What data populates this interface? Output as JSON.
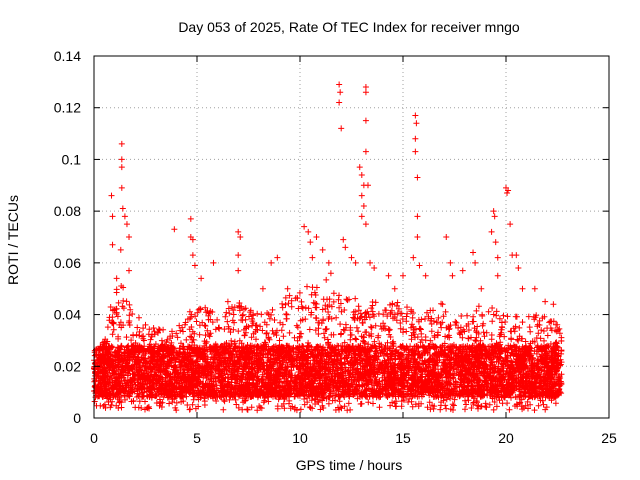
{
  "chart_data": {
    "type": "scatter",
    "title": "Day 053 of 2025, Rate Of TEC Index for receiver mngo",
    "xlabel": "GPS time / hours",
    "ylabel": "ROTI / TECUs",
    "xlim": [
      0,
      25
    ],
    "ylim": [
      0,
      0.14
    ],
    "x_ticks": [
      0,
      5,
      10,
      15,
      20,
      25
    ],
    "x_tick_labels": [
      "0",
      "5",
      "10",
      "15",
      "20",
      "25"
    ],
    "y_ticks": [
      0,
      0.02,
      0.04,
      0.06,
      0.08,
      0.1,
      0.12,
      0.14
    ],
    "y_tick_labels": [
      "0",
      "0.02",
      "0.04",
      "0.06",
      "0.08",
      "0.1",
      "0.12",
      "0.14"
    ],
    "grid": true,
    "marker": "+",
    "series_color": "#ff0000",
    "data_x_range": [
      0,
      22.7
    ],
    "baseline_band": [
      0.008,
      0.028
    ],
    "envelope": [
      {
        "x": 0.0,
        "y": 0.025
      },
      {
        "x": 0.5,
        "y": 0.03
      },
      {
        "x": 0.8,
        "y": 0.045
      },
      {
        "x": 1.2,
        "y": 0.055
      },
      {
        "x": 1.5,
        "y": 0.05
      },
      {
        "x": 2.0,
        "y": 0.04
      },
      {
        "x": 3.0,
        "y": 0.035
      },
      {
        "x": 4.0,
        "y": 0.035
      },
      {
        "x": 5.0,
        "y": 0.045
      },
      {
        "x": 6.0,
        "y": 0.04
      },
      {
        "x": 7.0,
        "y": 0.045
      },
      {
        "x": 8.0,
        "y": 0.04
      },
      {
        "x": 9.0,
        "y": 0.045
      },
      {
        "x": 10.0,
        "y": 0.05
      },
      {
        "x": 11.0,
        "y": 0.055
      },
      {
        "x": 12.0,
        "y": 0.05
      },
      {
        "x": 13.0,
        "y": 0.045
      },
      {
        "x": 14.0,
        "y": 0.045
      },
      {
        "x": 15.0,
        "y": 0.045
      },
      {
        "x": 16.0,
        "y": 0.04
      },
      {
        "x": 17.0,
        "y": 0.045
      },
      {
        "x": 18.0,
        "y": 0.04
      },
      {
        "x": 19.0,
        "y": 0.045
      },
      {
        "x": 20.0,
        "y": 0.04
      },
      {
        "x": 21.0,
        "y": 0.04
      },
      {
        "x": 22.0,
        "y": 0.04
      },
      {
        "x": 22.7,
        "y": 0.035
      }
    ],
    "notable_points": [
      {
        "x": 0.85,
        "y": 0.086
      },
      {
        "x": 0.9,
        "y": 0.078
      },
      {
        "x": 0.9,
        "y": 0.067
      },
      {
        "x": 1.35,
        "y": 0.106
      },
      {
        "x": 1.35,
        "y": 0.1
      },
      {
        "x": 1.35,
        "y": 0.097
      },
      {
        "x": 1.35,
        "y": 0.089
      },
      {
        "x": 1.4,
        "y": 0.081
      },
      {
        "x": 1.5,
        "y": 0.078
      },
      {
        "x": 1.6,
        "y": 0.075
      },
      {
        "x": 1.7,
        "y": 0.07
      },
      {
        "x": 1.7,
        "y": 0.057
      },
      {
        "x": 1.3,
        "y": 0.065
      },
      {
        "x": 1.1,
        "y": 0.054
      },
      {
        "x": 2.1,
        "y": 0.035
      },
      {
        "x": 2.5,
        "y": 0.036
      },
      {
        "x": 3.1,
        "y": 0.033
      },
      {
        "x": 3.9,
        "y": 0.073
      },
      {
        "x": 4.7,
        "y": 0.077
      },
      {
        "x": 4.7,
        "y": 0.07
      },
      {
        "x": 4.8,
        "y": 0.069
      },
      {
        "x": 4.8,
        "y": 0.063
      },
      {
        "x": 4.9,
        "y": 0.059
      },
      {
        "x": 5.2,
        "y": 0.054
      },
      {
        "x": 5.8,
        "y": 0.06
      },
      {
        "x": 6.5,
        "y": 0.045
      },
      {
        "x": 7.0,
        "y": 0.072
      },
      {
        "x": 7.1,
        "y": 0.07
      },
      {
        "x": 7.0,
        "y": 0.063
      },
      {
        "x": 7.0,
        "y": 0.057
      },
      {
        "x": 8.2,
        "y": 0.05
      },
      {
        "x": 8.6,
        "y": 0.06
      },
      {
        "x": 8.9,
        "y": 0.062
      },
      {
        "x": 9.4,
        "y": 0.05
      },
      {
        "x": 10.2,
        "y": 0.074
      },
      {
        "x": 10.4,
        "y": 0.072
      },
      {
        "x": 10.5,
        "y": 0.068
      },
      {
        "x": 10.8,
        "y": 0.07
      },
      {
        "x": 10.6,
        "y": 0.062
      },
      {
        "x": 11.1,
        "y": 0.065
      },
      {
        "x": 11.4,
        "y": 0.06
      },
      {
        "x": 11.5,
        "y": 0.056
      },
      {
        "x": 11.9,
        "y": 0.129
      },
      {
        "x": 11.95,
        "y": 0.126
      },
      {
        "x": 11.9,
        "y": 0.122
      },
      {
        "x": 12.0,
        "y": 0.112
      },
      {
        "x": 12.1,
        "y": 0.069
      },
      {
        "x": 12.2,
        "y": 0.066
      },
      {
        "x": 12.5,
        "y": 0.062
      },
      {
        "x": 12.7,
        "y": 0.06
      },
      {
        "x": 12.9,
        "y": 0.097
      },
      {
        "x": 13.0,
        "y": 0.094
      },
      {
        "x": 13.1,
        "y": 0.09
      },
      {
        "x": 13.0,
        "y": 0.086
      },
      {
        "x": 13.1,
        "y": 0.082
      },
      {
        "x": 13.0,
        "y": 0.078
      },
      {
        "x": 13.2,
        "y": 0.128
      },
      {
        "x": 13.2,
        "y": 0.126
      },
      {
        "x": 13.2,
        "y": 0.115
      },
      {
        "x": 13.2,
        "y": 0.103
      },
      {
        "x": 13.3,
        "y": 0.09
      },
      {
        "x": 13.2,
        "y": 0.075
      },
      {
        "x": 13.4,
        "y": 0.06
      },
      {
        "x": 13.6,
        "y": 0.058
      },
      {
        "x": 14.3,
        "y": 0.055
      },
      {
        "x": 14.6,
        "y": 0.05
      },
      {
        "x": 15.0,
        "y": 0.055
      },
      {
        "x": 15.5,
        "y": 0.062
      },
      {
        "x": 15.6,
        "y": 0.117
      },
      {
        "x": 15.65,
        "y": 0.114
      },
      {
        "x": 15.6,
        "y": 0.108
      },
      {
        "x": 15.6,
        "y": 0.103
      },
      {
        "x": 15.7,
        "y": 0.093
      },
      {
        "x": 15.7,
        "y": 0.078
      },
      {
        "x": 15.7,
        "y": 0.07
      },
      {
        "x": 15.8,
        "y": 0.059
      },
      {
        "x": 16.1,
        "y": 0.055
      },
      {
        "x": 17.1,
        "y": 0.07
      },
      {
        "x": 17.3,
        "y": 0.06
      },
      {
        "x": 17.4,
        "y": 0.055
      },
      {
        "x": 17.9,
        "y": 0.057
      },
      {
        "x": 18.4,
        "y": 0.064
      },
      {
        "x": 18.5,
        "y": 0.06
      },
      {
        "x": 18.8,
        "y": 0.05
      },
      {
        "x": 19.3,
        "y": 0.072
      },
      {
        "x": 19.4,
        "y": 0.08
      },
      {
        "x": 19.45,
        "y": 0.078
      },
      {
        "x": 19.5,
        "y": 0.068
      },
      {
        "x": 19.6,
        "y": 0.062
      },
      {
        "x": 19.6,
        "y": 0.055
      },
      {
        "x": 20.0,
        "y": 0.089
      },
      {
        "x": 20.1,
        "y": 0.088
      },
      {
        "x": 20.05,
        "y": 0.087
      },
      {
        "x": 20.2,
        "y": 0.075
      },
      {
        "x": 20.3,
        "y": 0.063
      },
      {
        "x": 20.5,
        "y": 0.063
      },
      {
        "x": 20.6,
        "y": 0.058
      },
      {
        "x": 20.8,
        "y": 0.05
      },
      {
        "x": 21.4,
        "y": 0.05
      },
      {
        "x": 21.9,
        "y": 0.045
      },
      {
        "x": 22.3,
        "y": 0.044
      }
    ]
  }
}
